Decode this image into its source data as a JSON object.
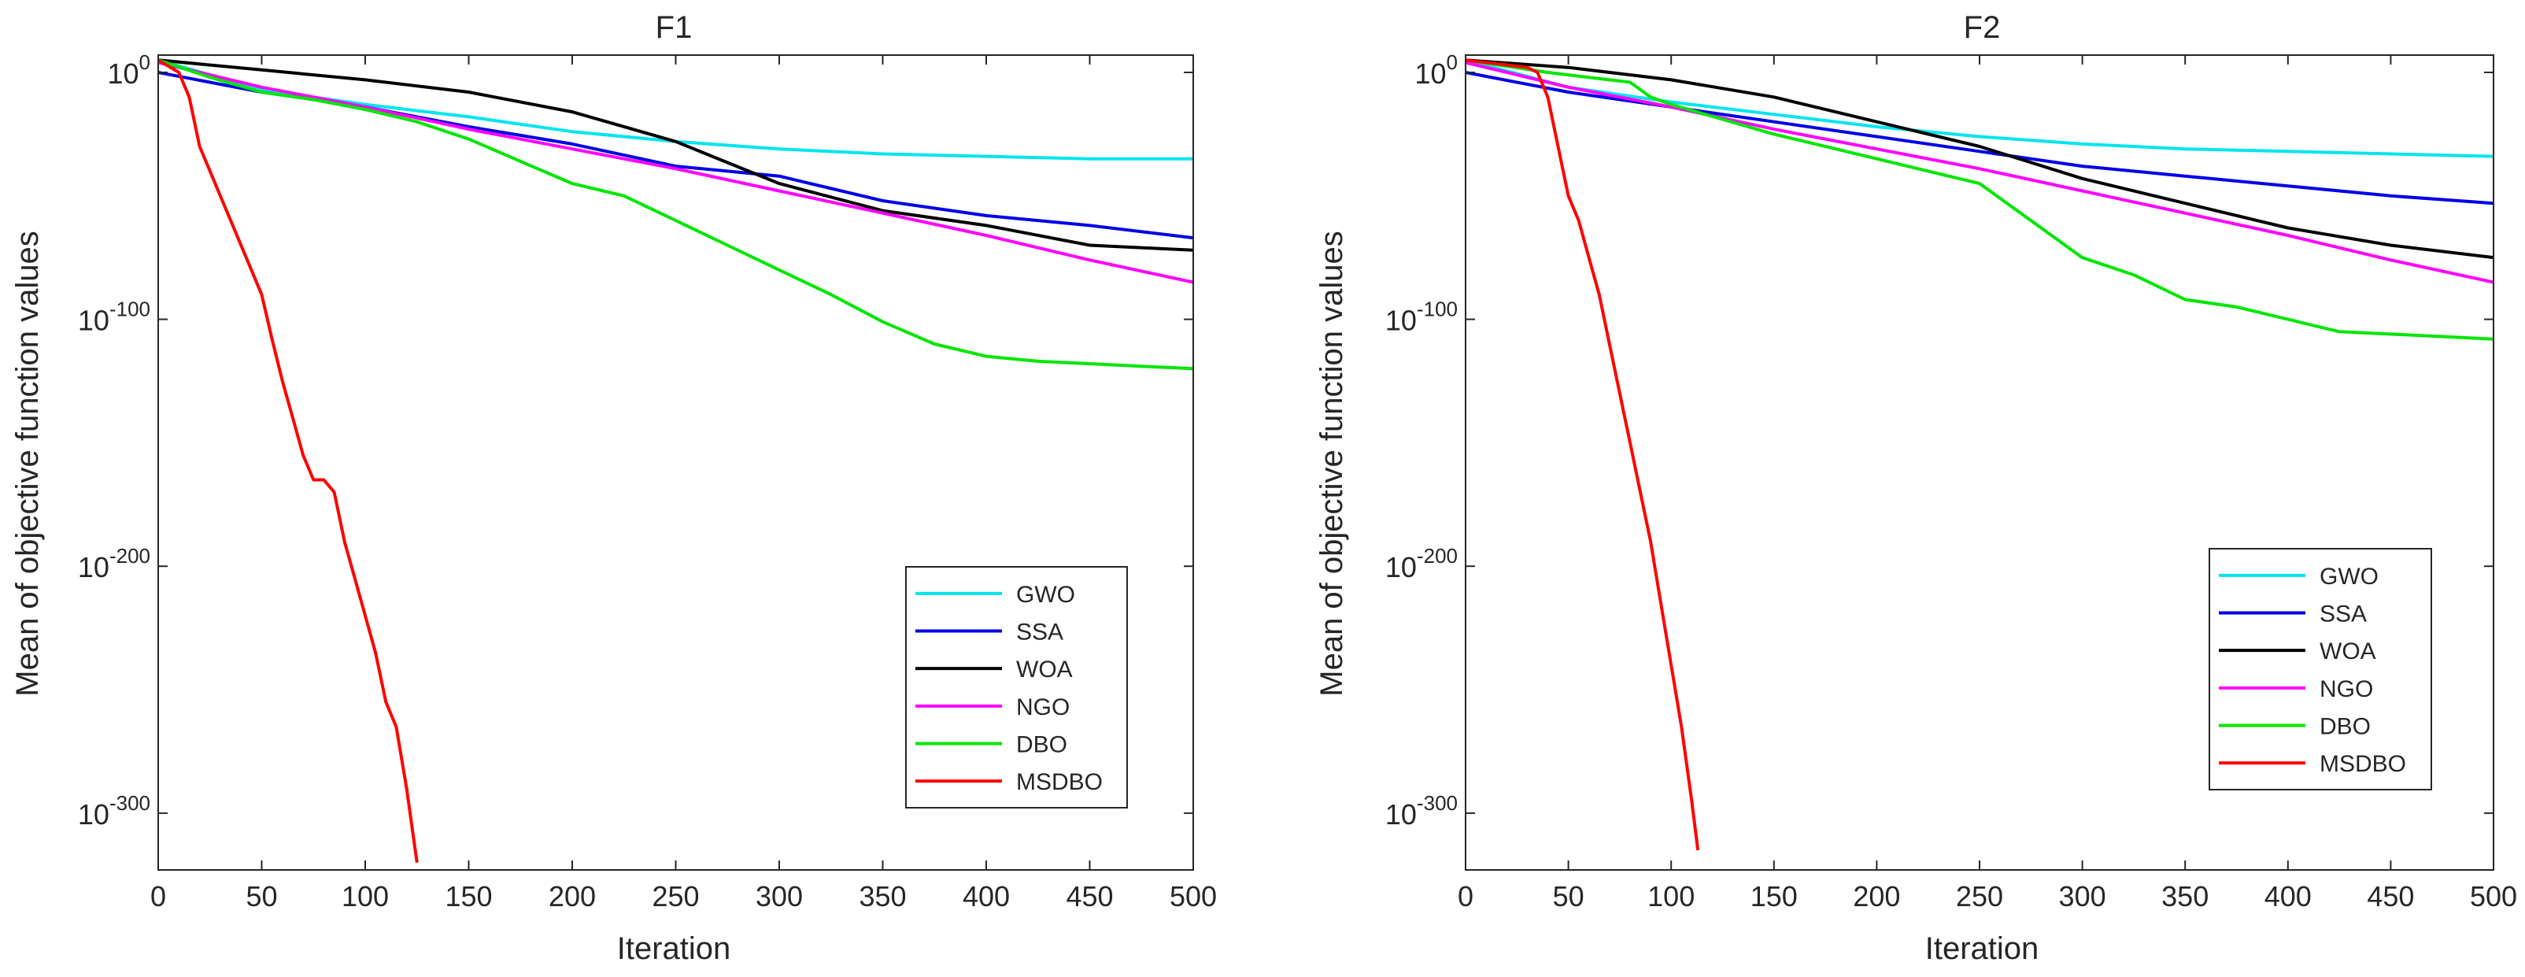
{
  "chart_data": [
    {
      "type": "line",
      "title": "F1",
      "xlabel": "Iteration",
      "ylabel": "Mean of objective function values",
      "xscale": "linear",
      "yscale": "log",
      "xlim": [
        0,
        500
      ],
      "ylim_log10": [
        -323,
        7
      ],
      "xticks": [
        "0",
        "50",
        "100",
        "150",
        "200",
        "250",
        "300",
        "350",
        "400",
        "450",
        "500"
      ],
      "yticks": [
        {
          "base": "10",
          "exp": "0",
          "log10": 0
        },
        {
          "base": "10",
          "exp": "-100",
          "log10": -100
        },
        {
          "base": "10",
          "exp": "-200",
          "log10": -200
        },
        {
          "base": "10",
          "exp": "-300",
          "log10": -300
        }
      ],
      "legend_location": "bottom-right",
      "series": [
        {
          "name": "GWO",
          "color": "#00e5ee",
          "x": [
            0,
            50,
            100,
            150,
            200,
            250,
            300,
            350,
            400,
            450,
            500
          ],
          "log10_y": [
            5,
            -7,
            -13,
            -18,
            -24,
            -28,
            -31,
            -33,
            -34,
            -35,
            -35
          ]
        },
        {
          "name": "SSA",
          "color": "#0000e6",
          "x": [
            0,
            50,
            100,
            150,
            200,
            250,
            300,
            350,
            400,
            450,
            500
          ],
          "log10_y": [
            0,
            -8,
            -14,
            -22,
            -29,
            -38,
            -42,
            -52,
            -58,
            -62,
            -67
          ]
        },
        {
          "name": "WOA",
          "color": "#000000",
          "x": [
            0,
            50,
            100,
            150,
            200,
            250,
            300,
            350,
            400,
            450,
            500
          ],
          "log10_y": [
            5,
            1,
            -3,
            -8,
            -16,
            -28,
            -45,
            -56,
            -62,
            -70,
            -72
          ]
        },
        {
          "name": "NGO",
          "color": "#ff00ff",
          "x": [
            0,
            50,
            100,
            150,
            200,
            250,
            300,
            350,
            400,
            450,
            500
          ],
          "log10_y": [
            4,
            -6,
            -14,
            -23,
            -31,
            -39,
            -48,
            -57,
            -66,
            -76,
            -85
          ]
        },
        {
          "name": "DBO",
          "color": "#00e600",
          "x": [
            0,
            25,
            50,
            75,
            100,
            125,
            150,
            175,
            200,
            225,
            250,
            275,
            300,
            325,
            350,
            375,
            400,
            425,
            450,
            475,
            500
          ],
          "log10_y": [
            5,
            -2,
            -8,
            -11,
            -15,
            -20,
            -27,
            -36,
            -45,
            -50,
            -60,
            -70,
            -80,
            -90,
            -101,
            -110,
            -115,
            -117,
            -118,
            -119,
            -120
          ]
        },
        {
          "name": "MSDBO",
          "color": "#ff0000",
          "x": [
            0,
            10,
            15,
            20,
            25,
            30,
            35,
            40,
            45,
            50,
            55,
            60,
            65,
            70,
            75,
            80,
            85,
            90,
            95,
            100,
            105,
            110,
            115,
            120,
            125
          ],
          "log10_y": [
            5,
            0,
            -10,
            -30,
            -40,
            -50,
            -60,
            -70,
            -80,
            -90,
            -108,
            -125,
            -140,
            -155,
            -165,
            -165,
            -170,
            -190,
            -205,
            -220,
            -235,
            -255,
            -265,
            -290,
            -320
          ]
        }
      ]
    },
    {
      "type": "line",
      "title": "F2",
      "xlabel": "Iteration",
      "ylabel": "Mean of objective function values",
      "xscale": "linear",
      "yscale": "log",
      "xlim": [
        0,
        500
      ],
      "ylim_log10": [
        -323,
        7
      ],
      "xticks": [
        "0",
        "50",
        "100",
        "150",
        "200",
        "250",
        "300",
        "350",
        "400",
        "450",
        "500"
      ],
      "yticks": [
        {
          "base": "10",
          "exp": "0",
          "log10": 0
        },
        {
          "base": "10",
          "exp": "-100",
          "log10": -100
        },
        {
          "base": "10",
          "exp": "-200",
          "log10": -200
        },
        {
          "base": "10",
          "exp": "-300",
          "log10": -300
        }
      ],
      "legend_location": "bottom-right",
      "series": [
        {
          "name": "GWO",
          "color": "#00e5ee",
          "x": [
            0,
            50,
            100,
            150,
            200,
            250,
            300,
            350,
            400,
            450,
            500
          ],
          "log10_y": [
            5,
            -6,
            -12,
            -17,
            -22,
            -26,
            -29,
            -31,
            -32,
            -33,
            -34
          ]
        },
        {
          "name": "SSA",
          "color": "#0000e6",
          "x": [
            0,
            50,
            100,
            150,
            200,
            250,
            300,
            350,
            400,
            450,
            500
          ],
          "log10_y": [
            0,
            -8,
            -14,
            -20,
            -26,
            -32,
            -38,
            -42,
            -46,
            -50,
            -53
          ]
        },
        {
          "name": "WOA",
          "color": "#000000",
          "x": [
            0,
            50,
            100,
            150,
            200,
            250,
            300,
            350,
            400,
            450,
            500
          ],
          "log10_y": [
            5,
            2,
            -3,
            -10,
            -20,
            -30,
            -43,
            -53,
            -63,
            -70,
            -75
          ]
        },
        {
          "name": "NGO",
          "color": "#ff00ff",
          "x": [
            0,
            50,
            100,
            150,
            200,
            250,
            300,
            350,
            400,
            450,
            500
          ],
          "log10_y": [
            4,
            -6,
            -14,
            -23,
            -31,
            -39,
            -48,
            -57,
            -66,
            -76,
            -85
          ]
        },
        {
          "name": "DBO",
          "color": "#00e600",
          "x": [
            0,
            40,
            80,
            90,
            100,
            150,
            200,
            225,
            250,
            275,
            300,
            325,
            350,
            375,
            400,
            425,
            450,
            475,
            500
          ],
          "log10_y": [
            5,
            0,
            -4,
            -10,
            -13,
            -25,
            -35,
            -40,
            -45,
            -60,
            -75,
            -82,
            -92,
            -95,
            -100,
            -105,
            -106,
            -107,
            -108
          ]
        },
        {
          "name": "MSDBO",
          "color": "#ff0000",
          "x": [
            0,
            20,
            30,
            35,
            40,
            45,
            50,
            55,
            60,
            65,
            70,
            75,
            80,
            85,
            90,
            95,
            100,
            105,
            110,
            113
          ],
          "log10_y": [
            5,
            3,
            2,
            0,
            -10,
            -30,
            -50,
            -60,
            -75,
            -90,
            -110,
            -130,
            -150,
            -170,
            -190,
            -215,
            -240,
            -265,
            -295,
            -315
          ]
        }
      ]
    }
  ]
}
